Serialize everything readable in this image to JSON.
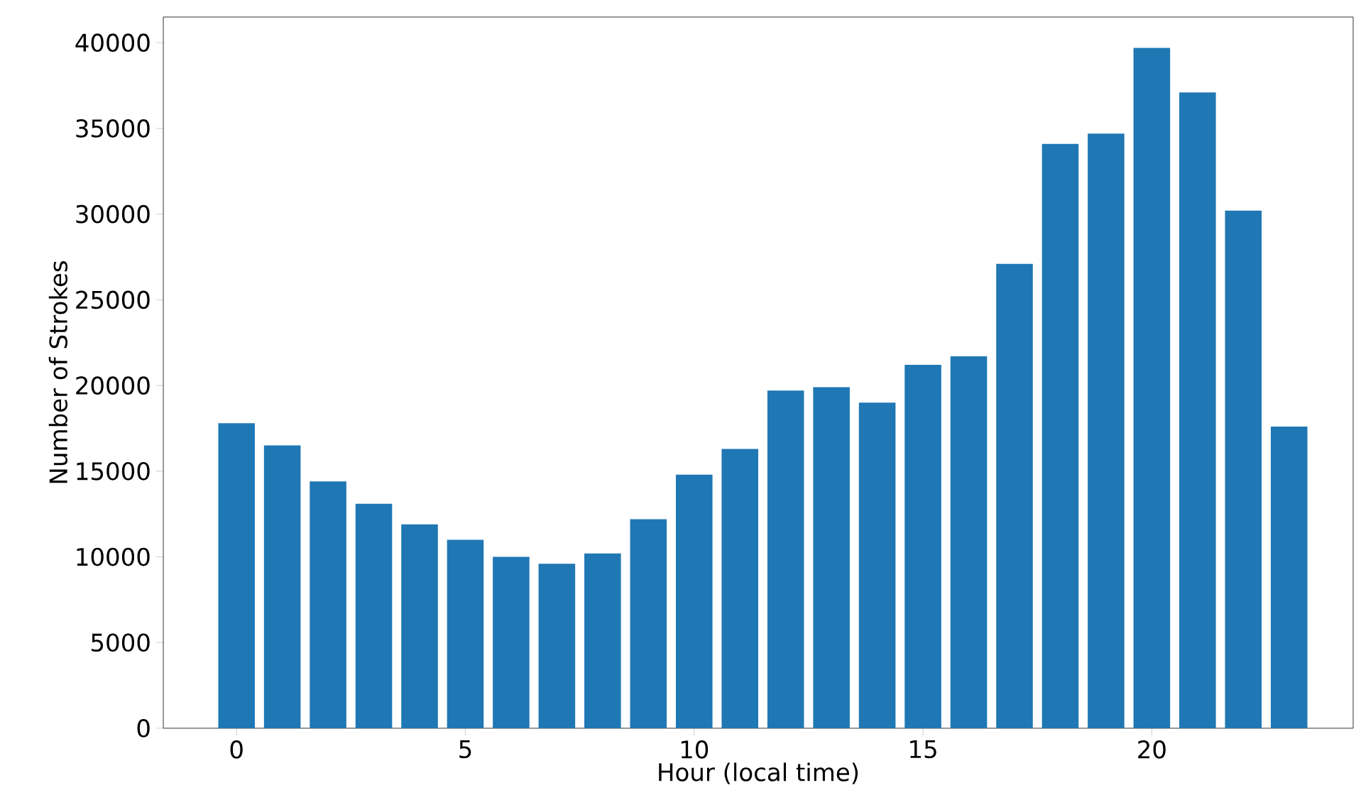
{
  "chart_data": {
    "type": "bar",
    "xlabel": "Hour (local time)",
    "ylabel": "Number of Strokes",
    "x": [
      0,
      1,
      2,
      3,
      4,
      5,
      6,
      7,
      8,
      9,
      10,
      11,
      12,
      13,
      14,
      15,
      16,
      17,
      18,
      19,
      20,
      21,
      22,
      23
    ],
    "values": [
      17800,
      16500,
      14400,
      13100,
      11900,
      11000,
      10000,
      9600,
      10200,
      12200,
      14800,
      16300,
      19700,
      19900,
      19000,
      21200,
      21700,
      27100,
      34100,
      34700,
      39700,
      37100,
      30200,
      17600
    ],
    "color": "#1f77b4",
    "xlim": [
      -1.6,
      24.4
    ],
    "xticks": [
      0,
      5,
      10,
      15,
      20
    ],
    "ylim": [
      0,
      41500
    ],
    "yticks": [
      0,
      5000,
      10000,
      15000,
      20000,
      25000,
      30000,
      35000,
      40000
    ]
  }
}
